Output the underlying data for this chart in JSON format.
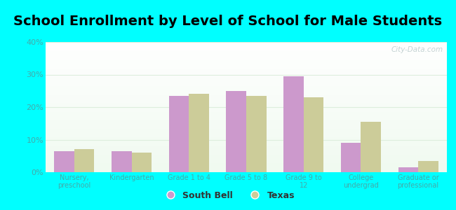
{
  "title": "School Enrollment by Level of School for Male Students",
  "categories": [
    "Nursery,\npreschool",
    "Kindergarten",
    "Grade 1 to 4",
    "Grade 5 to 8",
    "Grade 9 to\n12",
    "College\nundergrad",
    "Graduate or\nprofessional"
  ],
  "south_bell": [
    6.5,
    6.5,
    23.5,
    25.0,
    29.5,
    9.0,
    1.5
  ],
  "texas": [
    7.0,
    6.0,
    24.0,
    23.5,
    23.0,
    15.5,
    3.5
  ],
  "south_bell_color": "#cc99cc",
  "texas_color": "#cccc99",
  "background_outer": "#00ffff",
  "ylim": [
    0,
    40
  ],
  "yticks": [
    0,
    10,
    20,
    30,
    40
  ],
  "ytick_labels": [
    "0%",
    "10%",
    "20%",
    "30%",
    "40%"
  ],
  "title_fontsize": 14,
  "legend_south_bell": "South Bell",
  "legend_texas": "Texas",
  "bar_width": 0.35,
  "watermark": "City-Data.com",
  "tick_color": "#44aaaa",
  "grid_color": "#ddeedd"
}
